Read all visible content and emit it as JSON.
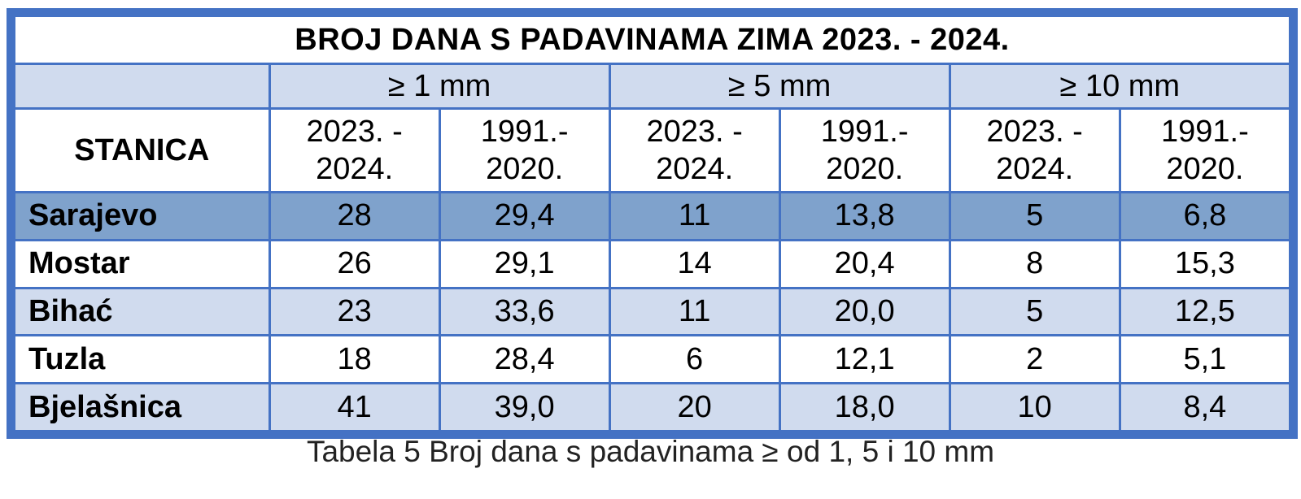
{
  "table": {
    "title": "BROJ DANA S PADAVINAMA ZIMA 2023. - 2024.",
    "station_header": "STANICA",
    "groups": [
      "≥ 1 mm",
      "≥ 5 mm",
      "≥ 10 mm"
    ],
    "periods": {
      "current_line1": "2023. -",
      "current_line2": "2024.",
      "normal_line1": "1991.-",
      "normal_line2": "2020."
    },
    "rows": [
      {
        "station": "Sarajevo",
        "values": [
          "28",
          "29,4",
          "11",
          "13,8",
          "5",
          "6,8"
        ]
      },
      {
        "station": "Mostar",
        "values": [
          "26",
          "29,1",
          "14",
          "20,4",
          "8",
          "15,3"
        ]
      },
      {
        "station": "Bihać",
        "values": [
          "23",
          "33,6",
          "11",
          "20,0",
          "5",
          "12,5"
        ]
      },
      {
        "station": "Tuzla",
        "values": [
          "18",
          "28,4",
          "6",
          "12,1",
          "2",
          "5,1"
        ]
      },
      {
        "station": "Bjelašnica",
        "values": [
          "41",
          "39,0",
          "20",
          "18,0",
          "10",
          "8,4"
        ]
      }
    ]
  },
  "caption": "Tabela 5 Broj dana s padavinama ≥ od 1, 5 i 10 mm",
  "colors": {
    "border": "#4472c4",
    "row_band": "#d0dbee",
    "row_highlight": "#7fa2cc"
  }
}
